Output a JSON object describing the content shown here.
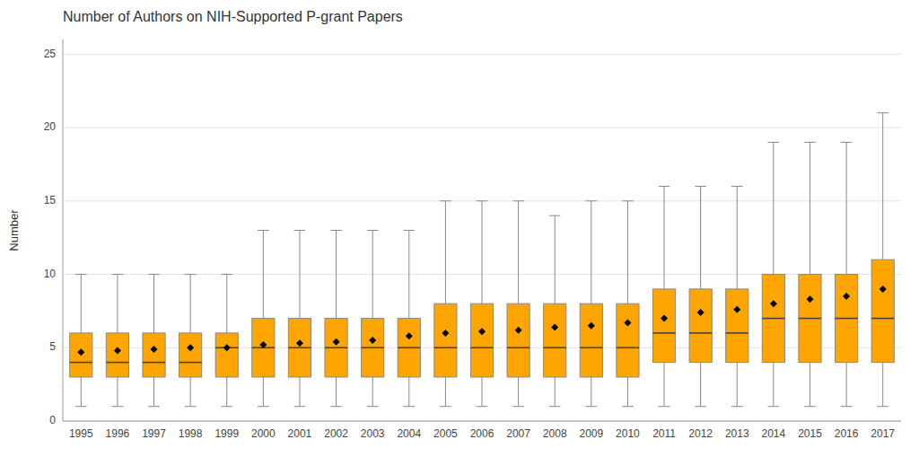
{
  "chart_data": {
    "type": "box",
    "title": "Number of Authors on NIH-Supported P-grant Papers",
    "ylabel": "Number",
    "categories": [
      "1995",
      "1996",
      "1997",
      "1998",
      "1999",
      "2000",
      "2001",
      "2002",
      "2003",
      "2004",
      "2005",
      "2006",
      "2007",
      "2008",
      "2009",
      "2010",
      "2011",
      "2012",
      "2013",
      "2014",
      "2015",
      "2016",
      "2017"
    ],
    "whislo": [
      1,
      1,
      1,
      1,
      1,
      1,
      1,
      1,
      1,
      1,
      1,
      1,
      1,
      1,
      1,
      1,
      1,
      1,
      1,
      1,
      1,
      1,
      1
    ],
    "q1": [
      3,
      3,
      3,
      3,
      3,
      3,
      3,
      3,
      3,
      3,
      3,
      3,
      3,
      3,
      3,
      3,
      4,
      4,
      4,
      4,
      4,
      4,
      4
    ],
    "median": [
      4,
      4,
      4,
      4,
      5,
      5,
      5,
      5,
      5,
      5,
      5,
      5,
      5,
      5,
      5,
      5,
      6,
      6,
      6,
      7,
      7,
      7,
      7
    ],
    "q3": [
      6,
      6,
      6,
      6,
      6,
      7,
      7,
      7,
      7,
      7,
      8,
      8,
      8,
      8,
      8,
      8,
      9,
      9,
      9,
      10,
      10,
      10,
      11
    ],
    "whishi": [
      10,
      10,
      10,
      10,
      10,
      13,
      13,
      13,
      13,
      13,
      15,
      15,
      15,
      14,
      15,
      15,
      16,
      16,
      16,
      19,
      19,
      19,
      21
    ],
    "mean": [
      4.7,
      4.8,
      4.9,
      5.0,
      5.0,
      5.2,
      5.3,
      5.4,
      5.5,
      5.8,
      6.0,
      6.1,
      6.2,
      6.4,
      6.5,
      6.7,
      7.0,
      7.4,
      7.6,
      8.0,
      8.3,
      8.5,
      9.0
    ],
    "color": "#FFA500",
    "marker": "diamond",
    "ylim": [
      0,
      26
    ],
    "yticks": [
      0,
      5,
      10,
      15,
      20,
      25
    ],
    "grid": true
  }
}
